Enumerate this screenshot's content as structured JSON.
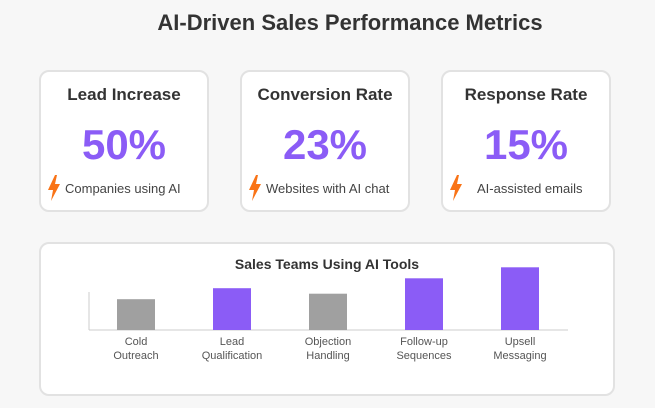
{
  "page": {
    "title": "AI-Driven Sales Performance Metrics"
  },
  "colors": {
    "accent": "#8b5cf6",
    "muted_bar": "#a0a0a0",
    "bolt": "#f97316"
  },
  "cards": [
    {
      "title": "Lead Increase",
      "value": "50%",
      "note": "Companies using AI",
      "icon": "lightning-bolt-icon"
    },
    {
      "title": "Conversion Rate",
      "value": "23%",
      "note": "Websites with AI chat",
      "icon": "lightning-bolt-icon"
    },
    {
      "title": "Response Rate",
      "value": "15%",
      "note": "AI-assisted emails",
      "icon": "lightning-bolt-icon"
    }
  ],
  "chart_data": {
    "type": "bar",
    "title": "Sales Teams Using AI Tools",
    "categories": [
      [
        "Cold",
        "Outreach"
      ],
      [
        "Lead",
        "Qualification"
      ],
      [
        "Objection",
        "Handling"
      ],
      [
        "Follow-up",
        "Sequences"
      ],
      [
        "Upsell",
        "Messaging"
      ]
    ],
    "values": [
      28,
      38,
      33,
      47,
      57
    ],
    "ylim": [
      0,
      60
    ],
    "highlighted": [
      false,
      true,
      false,
      true,
      true
    ],
    "xlabel": "",
    "ylabel": "",
    "grid": false,
    "legend": "none"
  }
}
